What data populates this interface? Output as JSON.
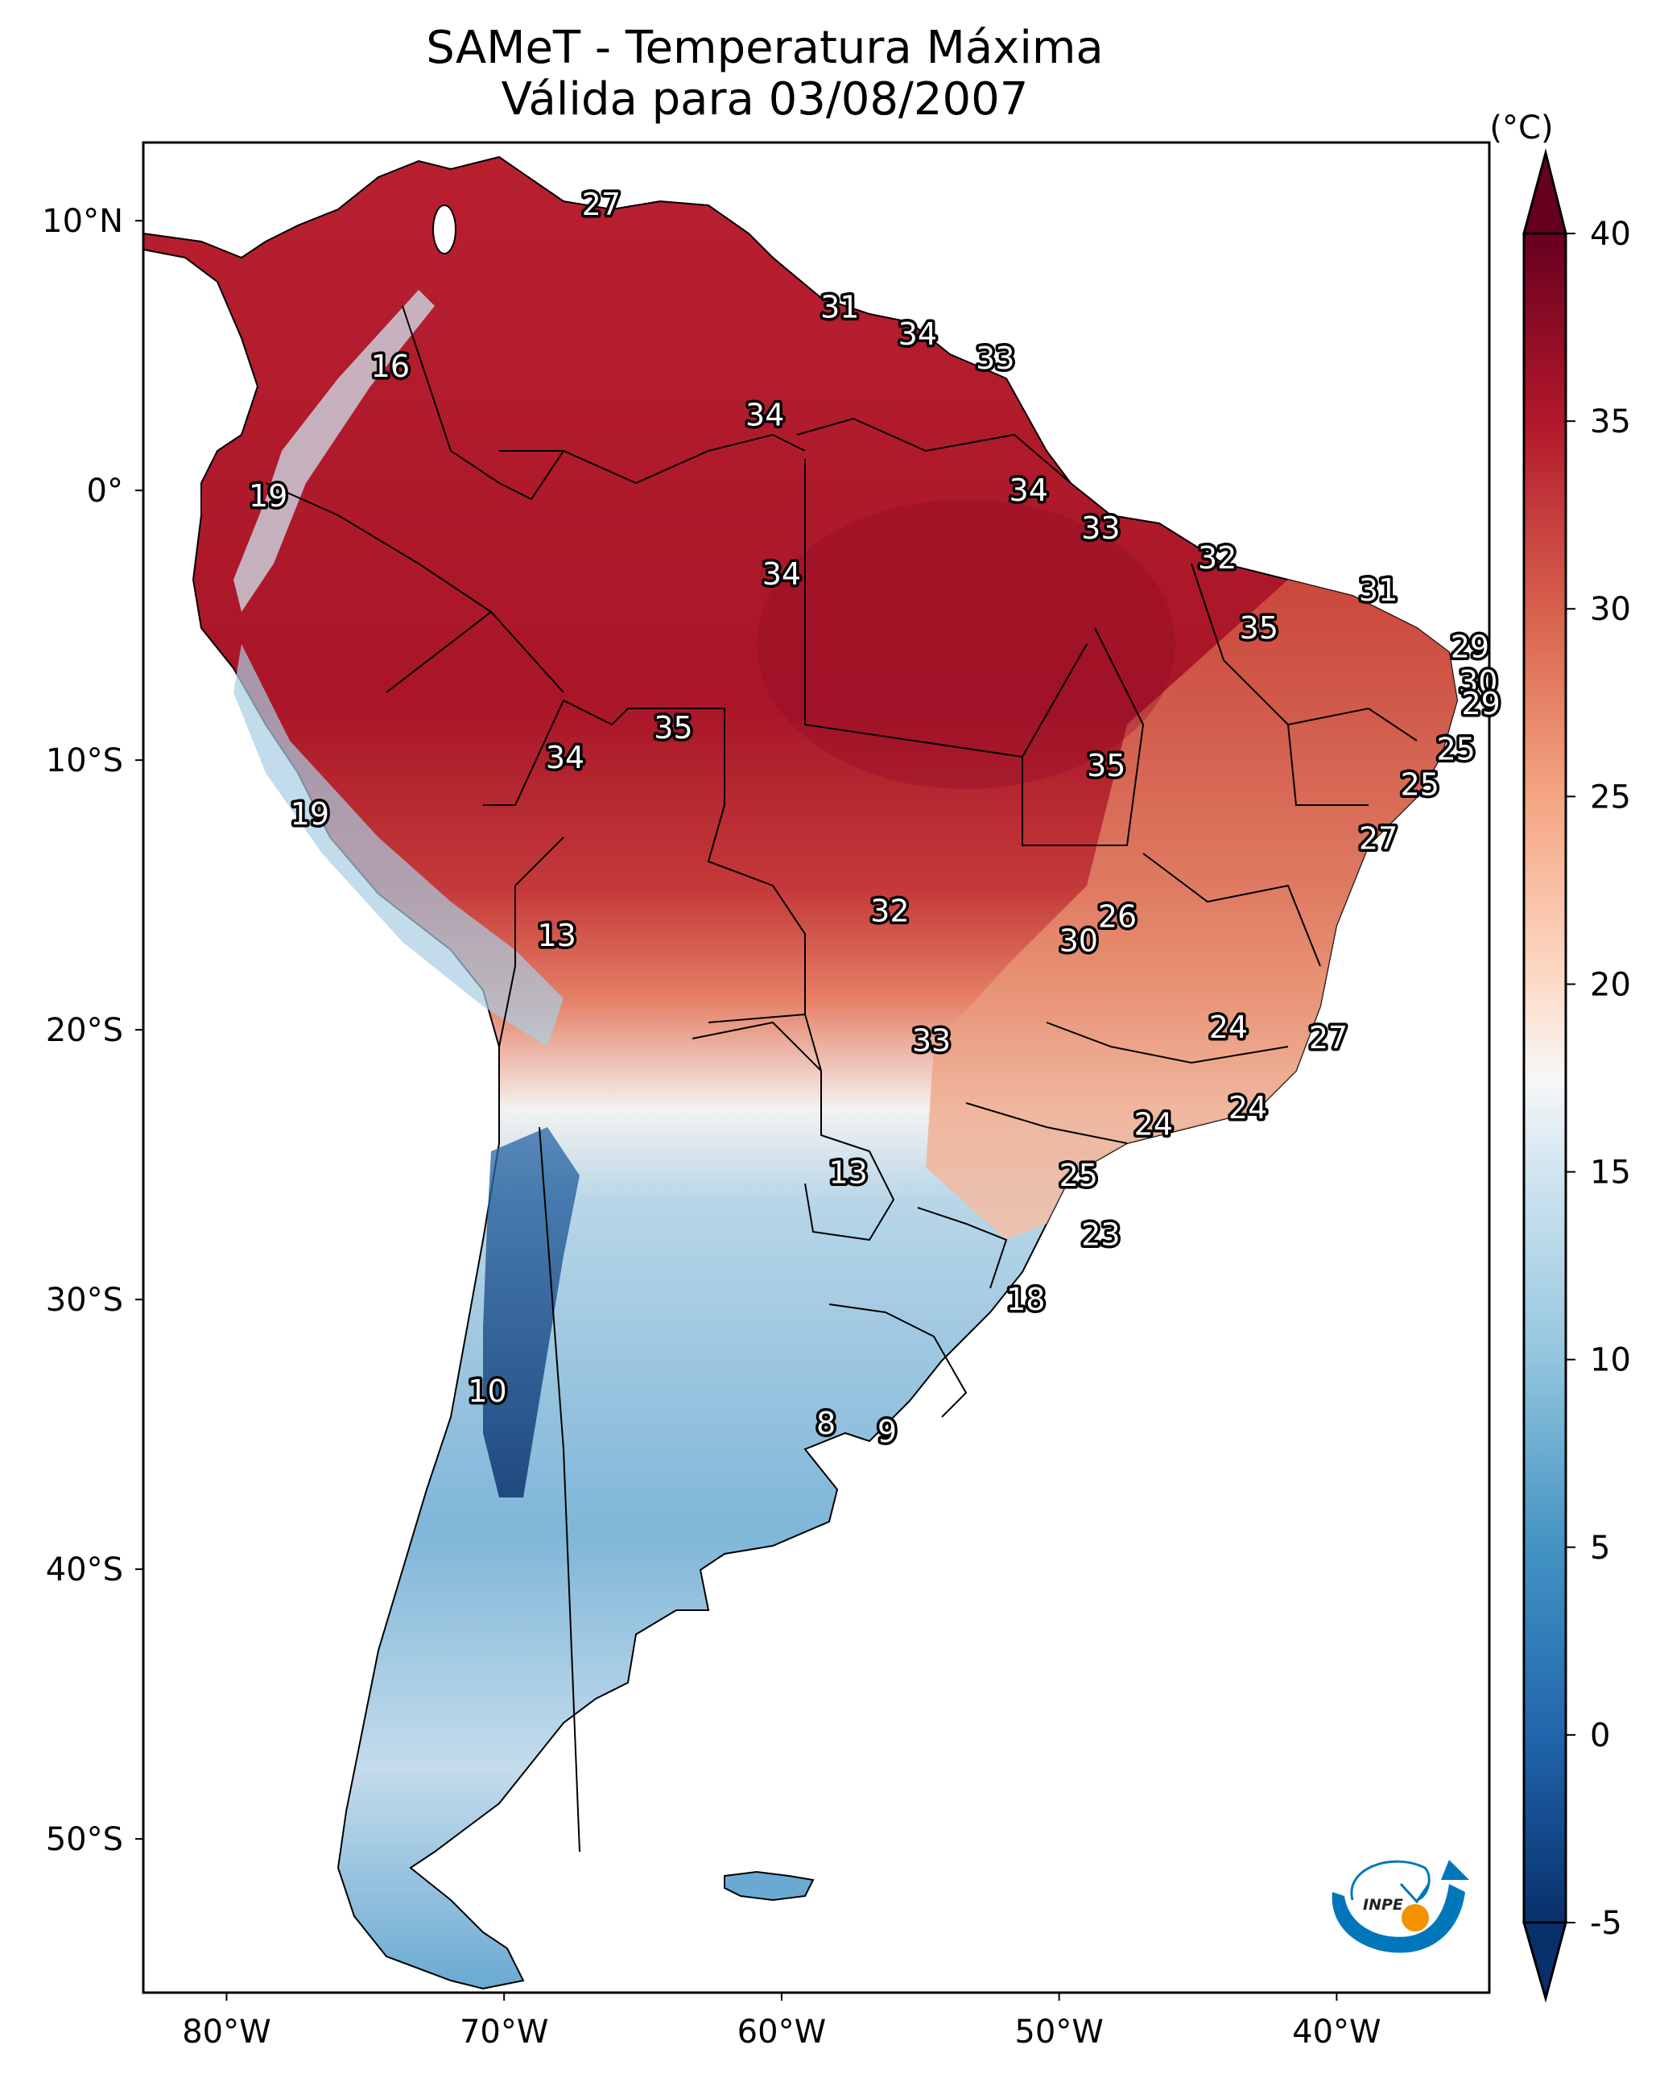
{
  "title": {
    "line1": "SAMeT - Temperatura Máxima",
    "line2": "Válida para 03/08/2007"
  },
  "logo": {
    "text": "INPE",
    "colors": {
      "blue": "#0077bb",
      "orange": "#f39200"
    }
  },
  "chart_data": {
    "type": "heatmap",
    "title": "SAMeT - Temperatura Máxima",
    "subtitle": "Válida para 03/08/2007",
    "xlabel": "",
    "ylabel": "",
    "x_range_lon": [
      -83,
      -34.5
    ],
    "y_range_lat": [
      -55.7,
      12.9
    ],
    "x_ticks": [
      {
        "value": -80,
        "label": "80°W"
      },
      {
        "value": -70,
        "label": "70°W"
      },
      {
        "value": -60,
        "label": "60°W"
      },
      {
        "value": -50,
        "label": "50°W"
      },
      {
        "value": -40,
        "label": "40°W"
      }
    ],
    "y_ticks": [
      {
        "value": 10,
        "label": "10°N"
      },
      {
        "value": 0,
        "label": "0°"
      },
      {
        "value": -10,
        "label": "10°S"
      },
      {
        "value": -20,
        "label": "20°S"
      },
      {
        "value": -30,
        "label": "30°S"
      },
      {
        "value": -40,
        "label": "40°S"
      },
      {
        "value": -50,
        "label": "50°S"
      }
    ],
    "colorbar": {
      "label": "(°C)",
      "range": [
        -5,
        40
      ],
      "extend": "both",
      "colormap": "RdBu_r",
      "ticks": [
        40,
        35,
        30,
        25,
        20,
        15,
        10,
        5,
        0,
        -5
      ],
      "tick_labels": [
        "40",
        "35",
        "30",
        "25",
        "20",
        "15",
        "10",
        "5",
        "0",
        "-5"
      ],
      "stops": [
        {
          "v": -5,
          "c": "#08306b"
        },
        {
          "v": 0,
          "c": "#2166ac"
        },
        {
          "v": 5,
          "c": "#4393c3"
        },
        {
          "v": 10,
          "c": "#92c5de"
        },
        {
          "v": 15,
          "c": "#d1e5f0"
        },
        {
          "v": 17.5,
          "c": "#f7f7f7"
        },
        {
          "v": 20,
          "c": "#fddbc7"
        },
        {
          "v": 25,
          "c": "#f4a582"
        },
        {
          "v": 30,
          "c": "#d6604d"
        },
        {
          "v": 35,
          "c": "#b2182b"
        },
        {
          "v": 40,
          "c": "#67001f"
        }
      ]
    },
    "station_labels": [
      {
        "lon": -66.5,
        "lat": 10.6,
        "value": 27
      },
      {
        "lon": -74.1,
        "lat": 4.6,
        "value": 16
      },
      {
        "lon": -78.5,
        "lat": -0.2,
        "value": 19
      },
      {
        "lon": -57.9,
        "lat": 6.8,
        "value": 31
      },
      {
        "lon": -55.1,
        "lat": 5.8,
        "value": 34
      },
      {
        "lon": -52.3,
        "lat": 4.9,
        "value": 33
      },
      {
        "lon": -60.6,
        "lat": 2.8,
        "value": 34
      },
      {
        "lon": -51.1,
        "lat": 0.0,
        "value": 34
      },
      {
        "lon": -48.5,
        "lat": -1.4,
        "value": 33
      },
      {
        "lon": -44.3,
        "lat": -2.5,
        "value": 32
      },
      {
        "lon": -38.5,
        "lat": -3.7,
        "value": 31
      },
      {
        "lon": -60.0,
        "lat": -3.1,
        "value": 34
      },
      {
        "lon": -42.8,
        "lat": -5.1,
        "value": 35
      },
      {
        "lon": -35.2,
        "lat": -5.8,
        "value": 29
      },
      {
        "lon": -34.9,
        "lat": -7.1,
        "value": 30
      },
      {
        "lon": -34.8,
        "lat": -7.9,
        "value": 29
      },
      {
        "lon": -35.7,
        "lat": -9.6,
        "value": 25
      },
      {
        "lon": -37.0,
        "lat": -10.9,
        "value": 25
      },
      {
        "lon": -63.9,
        "lat": -8.8,
        "value": 35
      },
      {
        "lon": -67.8,
        "lat": -9.9,
        "value": 34
      },
      {
        "lon": -48.3,
        "lat": -10.2,
        "value": 35
      },
      {
        "lon": -38.5,
        "lat": -12.9,
        "value": 27
      },
      {
        "lon": -77.0,
        "lat": -12.0,
        "value": 19
      },
      {
        "lon": -68.1,
        "lat": -16.5,
        "value": 13
      },
      {
        "lon": -56.1,
        "lat": -15.6,
        "value": 32
      },
      {
        "lon": -47.9,
        "lat": -15.8,
        "value": 26
      },
      {
        "lon": -49.3,
        "lat": -16.7,
        "value": 30
      },
      {
        "lon": -54.6,
        "lat": -20.4,
        "value": 33
      },
      {
        "lon": -43.9,
        "lat": -19.9,
        "value": 24
      },
      {
        "lon": -40.3,
        "lat": -20.3,
        "value": 27
      },
      {
        "lon": -46.6,
        "lat": -23.5,
        "value": 24
      },
      {
        "lon": -43.2,
        "lat": -22.9,
        "value": 24
      },
      {
        "lon": -49.3,
        "lat": -25.4,
        "value": 25
      },
      {
        "lon": -57.6,
        "lat": -25.3,
        "value": 13
      },
      {
        "lon": -48.5,
        "lat": -27.6,
        "value": 23
      },
      {
        "lon": -51.2,
        "lat": -30.0,
        "value": 18
      },
      {
        "lon": -70.6,
        "lat": -33.4,
        "value": 10
      },
      {
        "lon": -58.4,
        "lat": -34.6,
        "value": 8
      },
      {
        "lon": -56.2,
        "lat": -34.9,
        "value": 9
      }
    ],
    "legend": "colorbar-right"
  }
}
